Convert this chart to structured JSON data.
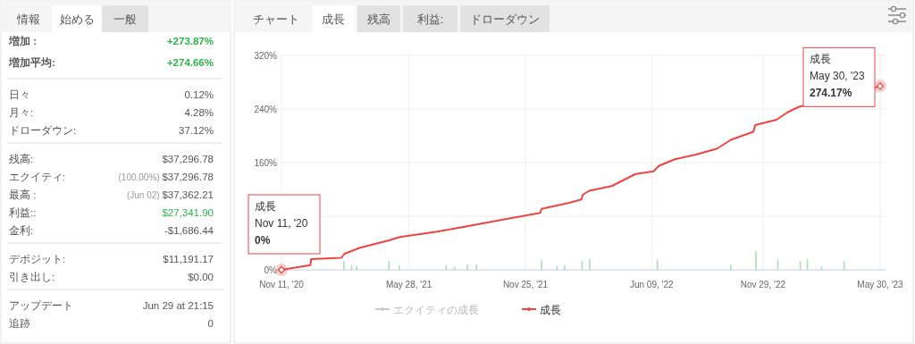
{
  "chart_data": [
    {
      "type": "other",
      "annotations": [
        "情報",
        "始める",
        "一般",
        "増加 :",
        "+273.87%",
        "増加平均:",
        "+274.66%",
        "日々",
        "0.12%",
        "月々:",
        "4.28%",
        "ドローダウン:",
        "37.12%",
        "残高:",
        "$37,296.78",
        "エクイティ:",
        "(100.00%) $37,296.78",
        "最高 :",
        "(Jun 02) $37,362.21",
        "利益::",
        "$27,341.90",
        "金利:",
        "-$1,686.44",
        "デポジット:",
        "$11,191.17",
        "引き出し:",
        "$0.00",
        "アップデート",
        "Jun 29 at 21:15",
        "追跡",
        "0"
      ],
      "colors": [
        "#2db24a",
        "#2db24a",
        "#555555",
        "#555555",
        "#555555",
        "#555555",
        "#555555",
        "#555555",
        "#2db24a",
        "#555555",
        "#555555",
        "#555555",
        "#555555",
        "#555555"
      ]
    },
    {
      "type": "line",
      "annotations": [
        "チャート",
        "成長",
        "残高",
        "利益:",
        "ドローダウン",
        {
          "text": "成長\nNov 11, '20\n0%",
          "x": "2020-11-11",
          "y": 0
        },
        {
          "text": "成長\nMay 30, '23\n274.17%",
          "x": "2023-05-30",
          "y": 274.17
        }
      ],
      "series": [
        {
          "type": "bar",
          "color": "#a8e0b4",
          "x": [
            "2021-02-16",
            "2021-02-28",
            "2021-03-08",
            "2021-04-27",
            "2021-05-13",
            "2021-07-25",
            "2021-08-07",
            "2021-08-27",
            "2021-09-10",
            "2021-12-20",
            "2022-01-13",
            "2022-01-25",
            "2022-02-21",
            "2022-03-05",
            "2022-06-18",
            "2022-10-10",
            "2022-11-18",
            "2022-12-22",
            "2023-01-26",
            "2023-02-06",
            "2023-02-28",
            "2023-04-04"
          ],
          "values": [
            13,
            7,
            6,
            13,
            7,
            7,
            4,
            8,
            8,
            15,
            6,
            7,
            13,
            16,
            15,
            8,
            28,
            15,
            13,
            16,
            5,
            13
          ]
        },
        {
          "name": "エクイティの成長",
          "color": "#c8c8c8"
        },
        {
          "name": "成長",
          "color": "#ee4444",
          "x": [
            "2020-11-11",
            "2020-12-26",
            "2020-12-27",
            "2021-02-12",
            "2021-02-17",
            "2021-03-13",
            "2021-04-27",
            "2021-05-14",
            "2021-07-11",
            "2021-09-01",
            "2021-10-27",
            "2021-11-25",
            "2021-12-18",
            "2021-12-20",
            "2022-02-01",
            "2022-02-20",
            "2022-02-22",
            "2022-03-04",
            "2022-04-08",
            "2022-05-15",
            "2022-06-12",
            "2022-06-20",
            "2022-07-15",
            "2022-08-17",
            "2022-09-19",
            "2022-10-10",
            "2022-11-14",
            "2022-11-17",
            "2022-12-20",
            "2023-01-06",
            "2023-01-23",
            "2023-05-30"
          ],
          "values": [
            0,
            7,
            16,
            18,
            24,
            33,
            44,
            49,
            57,
            66,
            76,
            81,
            85,
            91,
            100,
            105,
            112,
            118,
            125,
            143,
            147,
            155,
            165,
            172,
            181,
            194,
            206,
            216,
            224,
            235,
            243,
            274.17
          ]
        }
      ],
      "xlim": [
        "2020-11-11",
        "2023-05-30"
      ],
      "xticks": [
        {
          "value": "2020-11-11",
          "label": "Nov 11, '20"
        },
        {
          "value": "2021-05-28",
          "label": "May 28, '21"
        },
        {
          "value": "2021-11-25",
          "label": "Nov 25, '21"
        },
        {
          "value": "2022-06-09",
          "label": "Jun 09, '22"
        },
        {
          "value": "2022-11-29",
          "label": "Nov 29, '22"
        },
        {
          "value": "2023-05-30",
          "label": "May 30, '23"
        }
      ],
      "ylim": [
        0,
        320
      ],
      "yticks": [
        {
          "value": 0,
          "label": "0%"
        },
        {
          "value": 80,
          "label": null
        },
        {
          "value": 160,
          "label": "160%"
        },
        {
          "value": 240,
          "label": "240%"
        },
        {
          "value": 320,
          "label": "320%"
        }
      ],
      "grid": true,
      "legend": "bottom",
      "marker": "none",
      "line_style": "solid"
    }
  ]
}
